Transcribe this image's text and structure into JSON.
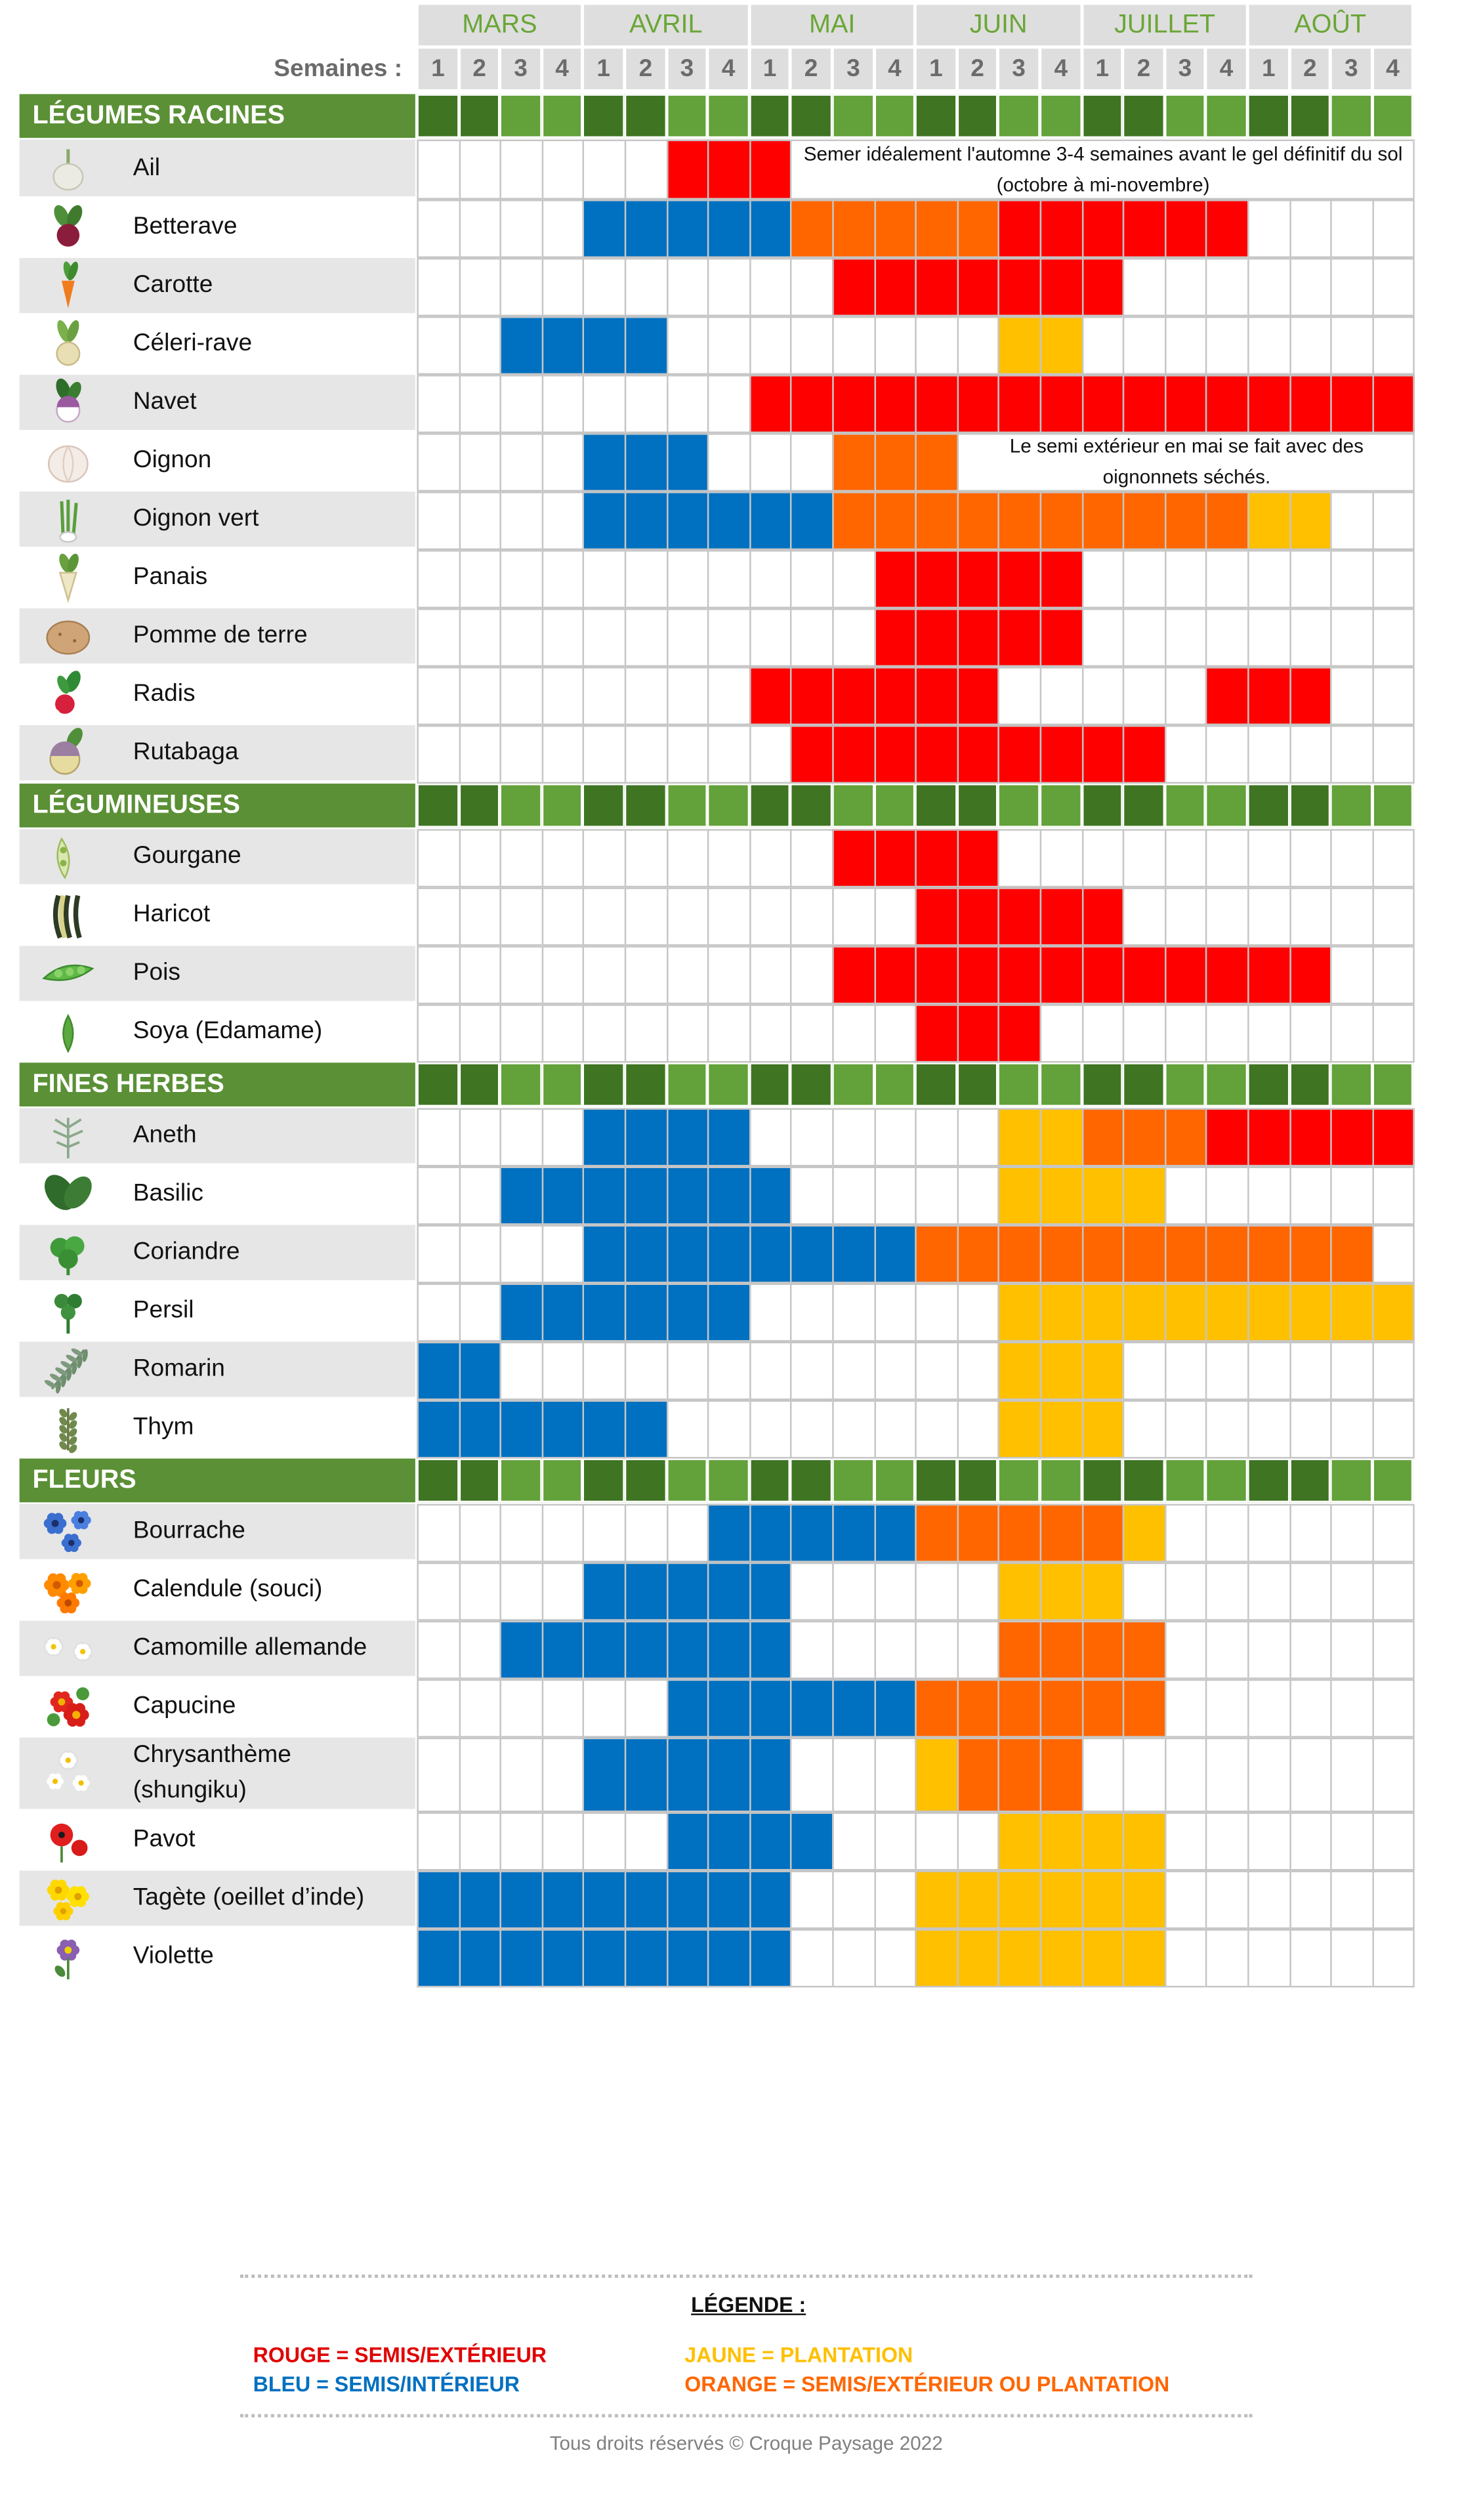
{
  "title": "",
  "header": {
    "weeks_label": "Semaines :",
    "months": [
      "MARS",
      "AVRIL",
      "MAI",
      "JUIN",
      "JUILLET",
      "AOÛT"
    ],
    "week_numbers": [
      "1",
      "2",
      "3",
      "4"
    ]
  },
  "colors": {
    "rouge": "#ff0000",
    "bleu": "#0070c0",
    "jaune": "#ffc000",
    "orange": "#ff6600",
    "category_bar": "#5b9036",
    "category_cell_dark": "#3f7423",
    "category_cell_light": "#63a13a",
    "month_text": "#6aa637",
    "row_shade": "#e6e6e6",
    "cell_border": "#c6c6c6"
  },
  "legend": {
    "title": "LÉGENDE :",
    "items": [
      {
        "key": "R",
        "label": "ROUGE = SEMIS/EXTÉRIEUR",
        "color": "#e00000"
      },
      {
        "key": "B",
        "label": "BLEU = SEMIS/INTÉRIEUR",
        "color": "#0070c0"
      },
      {
        "key": "J",
        "label": "JAUNE = PLANTATION",
        "color": "#ffc000"
      },
      {
        "key": "O",
        "label": "ORANGE = SEMIS/EXTÉRIEUR OU PLANTATION",
        "color": "#ff6600"
      }
    ]
  },
  "copyright": "Tous droits réservés © Croque Paysage 2022",
  "chart_data": {
    "type": "table",
    "columns": [
      "MARS 1",
      "MARS 2",
      "MARS 3",
      "MARS 4",
      "AVRIL 1",
      "AVRIL 2",
      "AVRIL 3",
      "AVRIL 4",
      "MAI 1",
      "MAI 2",
      "MAI 3",
      "MAI 4",
      "JUIN 1",
      "JUIN 2",
      "JUIN 3",
      "JUIN 4",
      "JUILLET 1",
      "JUILLET 2",
      "JUILLET 3",
      "JUILLET 4",
      "AOÛT 1",
      "AOÛT 2",
      "AOÛT 3",
      "AOÛT 4"
    ],
    "cell_codes": {
      "R": "rouge",
      "B": "bleu",
      "J": "jaune",
      "O": "orange",
      ".": "vide"
    },
    "categories": [
      {
        "name": "LÉGUMES RACINES",
        "rows": [
          {
            "name": "Ail",
            "icon": "garlic-icon",
            "cells": "......RRR...............",
            "note": {
              "text": "Semer idéalement  l'automne 3-4 semaines  avant le gel définitif du sol (octobre à mi-novembre)"
            }
          },
          {
            "name": "Betterave",
            "icon": "beet-icon",
            "cells": "....BBBBBOOOOORRRRRR...."
          },
          {
            "name": "Carotte",
            "icon": "carrot-icon",
            "cells": "..........RRRRRRR......."
          },
          {
            "name": "Céleri-rave",
            "icon": "celeriac-icon",
            "cells": "..BBBB........JJ........"
          },
          {
            "name": "Navet",
            "icon": "turnip-icon",
            "cells": "........RRRRRRRRRRRRRRRR"
          },
          {
            "name": "Oignon",
            "icon": "onion-icon",
            "cells": "....BBB...OOO...........",
            "note": {
              "text": "Le semi extérieur en mai se fait avec des oignonnets séchés."
            }
          },
          {
            "name": "Oignon vert",
            "icon": "green-onion-icon",
            "cells": "....BBBBBBOOOOOOOOOOJJ.."
          },
          {
            "name": "Panais",
            "icon": "parsnip-icon",
            "cells": "...........RRRRR........"
          },
          {
            "name": "Pomme de terre",
            "icon": "potato-icon",
            "cells": "...........RRRRR........"
          },
          {
            "name": "Radis",
            "icon": "radish-icon",
            "cells": "........RRRRRR.....RRR.."
          },
          {
            "name": "Rutabaga",
            "icon": "rutabaga-icon",
            "cells": ".........RRRRRRRRR......"
          }
        ]
      },
      {
        "name": "LÉGUMINEUSES",
        "rows": [
          {
            "name": "Gourgane",
            "icon": "broad-bean-icon",
            "cells": "..........RRRR.........."
          },
          {
            "name": "Haricot",
            "icon": "bean-icon",
            "cells": "............RRRRR......."
          },
          {
            "name": "Pois",
            "icon": "pea-icon",
            "cells": "..........RRRRRRRRRRRR.."
          },
          {
            "name": "Soya (Edamame)",
            "icon": "soy-icon",
            "cells": "............RRR........."
          }
        ]
      },
      {
        "name": "FINES HERBES",
        "rows": [
          {
            "name": "Aneth",
            "icon": "dill-icon",
            "cells": "....BBBB......JJOOORRRRR"
          },
          {
            "name": "Basilic",
            "icon": "basil-icon",
            "cells": "..BBBBBBB.....JJJJ......"
          },
          {
            "name": "Coriandre",
            "icon": "coriander-icon",
            "cells": "....BBBBBBBBOOOOOOOOOOO."
          },
          {
            "name": "Persil",
            "icon": "parsley-icon",
            "cells": "..BBBBBB......JJJJJJJJJJ"
          },
          {
            "name": "Romarin",
            "icon": "rosemary-icon",
            "cells": "BB............JJJ......."
          },
          {
            "name": "Thym",
            "icon": "thyme-icon",
            "cells": "BBBBBB........JJJ......."
          }
        ]
      },
      {
        "name": "FLEURS",
        "rows": [
          {
            "name": "Bourrache",
            "icon": "borage-icon",
            "cells": ".......BBBBBOOOOOJ......"
          },
          {
            "name": "Calendule (souci)",
            "icon": "calendula-icon",
            "cells": "....BBBBB.....JJJ......."
          },
          {
            "name": "Camomille allemande",
            "icon": "chamomile-icon",
            "cells": "..BBBBBBB.....OOOO......"
          },
          {
            "name": "Capucine",
            "icon": "nasturtium-icon",
            "cells": "......BBBBBBOOOOOO......"
          },
          {
            "name": "Chrysanthème",
            "name_line2": "(shungiku)",
            "icon": "chrysanthemum-icon",
            "cells": "....BBBBB...JOOO........"
          },
          {
            "name": "Pavot",
            "icon": "poppy-icon",
            "cells": "......BBBB....JJJJ......"
          },
          {
            "name": "Tagète (oeillet d’inde)",
            "icon": "marigold-icon",
            "cells": "BBBBBBBBB...JJJJJJ......"
          },
          {
            "name": "Violette",
            "icon": "violet-icon",
            "cells": "BBBBBBBBB...JJJJJJ......"
          }
        ]
      }
    ]
  }
}
